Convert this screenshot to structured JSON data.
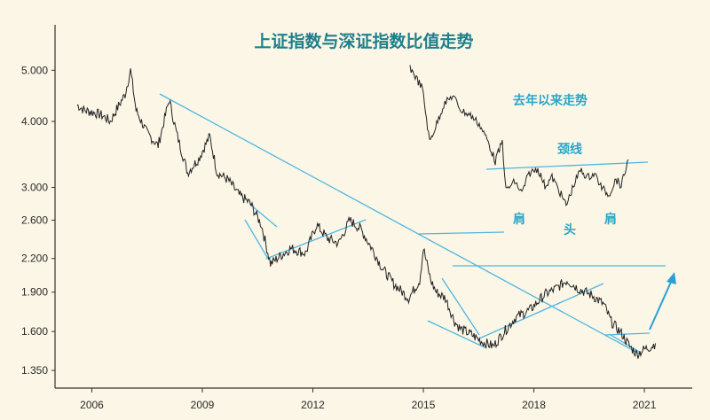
{
  "chart_data": {
    "type": "line",
    "title": "上证指数与深证指数比值走势",
    "xlabel": "",
    "ylabel": "",
    "y_scale": "log",
    "xlim": [
      2005.0,
      2022.3
    ],
    "ylim": [
      1.25,
      5.6
    ],
    "x_ticks": [
      2006,
      2009,
      2012,
      2015,
      2018,
      2021
    ],
    "x_tick_labels": [
      "2006",
      "2009",
      "2012",
      "2015",
      "2018",
      "2021"
    ],
    "y_ticks": [
      1.35,
      1.6,
      1.9,
      2.2,
      2.6,
      3.0,
      4.0,
      5.0
    ],
    "y_tick_labels": [
      "1.350",
      "1.600",
      "1.900",
      "2.200",
      "2.600",
      "3.000",
      "4.000",
      "5.000"
    ],
    "grid": false,
    "colors": {
      "series": "#222222",
      "trend": "#4fb6e0",
      "arrow": "#2a9fd6",
      "title": "#1e7f8c",
      "annotation": "#2aa6c8"
    },
    "series": [
      {
        "values": [
          [
            2005.6,
            4.3
          ],
          [
            2005.8,
            4.2
          ],
          [
            2006.1,
            4.15
          ],
          [
            2006.3,
            4.1
          ],
          [
            2006.5,
            4.0
          ],
          [
            2006.7,
            4.25
          ],
          [
            2006.9,
            4.5
          ],
          [
            2007.05,
            5.0
          ],
          [
            2007.2,
            4.2
          ],
          [
            2007.5,
            3.8
          ],
          [
            2007.8,
            3.6
          ],
          [
            2008.1,
            4.4
          ],
          [
            2008.3,
            3.8
          ],
          [
            2008.6,
            3.2
          ],
          [
            2008.9,
            3.4
          ],
          [
            2009.2,
            3.75
          ],
          [
            2009.4,
            3.2
          ],
          [
            2009.7,
            3.1
          ],
          [
            2010.0,
            2.9
          ],
          [
            2010.3,
            2.8
          ],
          [
            2010.6,
            2.55
          ],
          [
            2010.85,
            2.15
          ],
          [
            2011.1,
            2.22
          ],
          [
            2011.4,
            2.3
          ],
          [
            2011.8,
            2.25
          ],
          [
            2012.1,
            2.55
          ],
          [
            2012.4,
            2.4
          ],
          [
            2012.7,
            2.35
          ],
          [
            2013.0,
            2.6
          ],
          [
            2013.3,
            2.5
          ],
          [
            2013.6,
            2.3
          ],
          [
            2013.9,
            2.1
          ],
          [
            2014.2,
            1.97
          ],
          [
            2014.6,
            1.85
          ],
          [
            2014.9,
            2.0
          ],
          [
            2015.0,
            2.3
          ],
          [
            2015.2,
            2.0
          ],
          [
            2015.35,
            1.9
          ],
          [
            2015.6,
            1.85
          ],
          [
            2015.85,
            1.67
          ],
          [
            2016.0,
            1.62
          ],
          [
            2016.3,
            1.58
          ],
          [
            2016.6,
            1.53
          ],
          [
            2016.9,
            1.5
          ],
          [
            2017.2,
            1.6
          ],
          [
            2017.5,
            1.7
          ],
          [
            2017.9,
            1.76
          ],
          [
            2018.3,
            1.88
          ],
          [
            2018.6,
            1.93
          ],
          [
            2018.9,
            2.0
          ],
          [
            2019.2,
            1.93
          ],
          [
            2019.6,
            1.87
          ],
          [
            2019.9,
            1.8
          ],
          [
            2020.1,
            1.67
          ],
          [
            2020.4,
            1.58
          ],
          [
            2020.6,
            1.5
          ],
          [
            2020.8,
            1.45
          ],
          [
            2021.0,
            1.48
          ],
          [
            2021.2,
            1.5
          ],
          [
            2021.3,
            1.52
          ]
        ]
      }
    ],
    "inset": {
      "label": "去年以来走势",
      "neckline_label": "颈线",
      "pattern_labels": {
        "left_shoulder": "肩",
        "head": "头",
        "right_shoulder": "肩"
      }
    }
  }
}
